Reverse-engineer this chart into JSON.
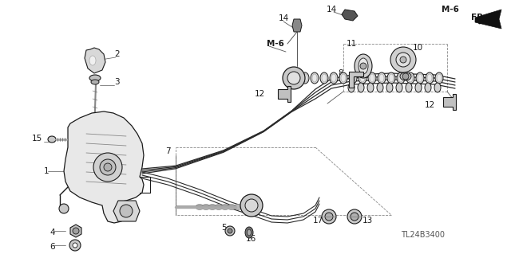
{
  "bg": "#ffffff",
  "lc": "#1a1a1a",
  "tc": "#1a1a1a",
  "figsize": [
    6.4,
    3.19
  ],
  "dpi": 100,
  "diagram_code": "TL24B3400"
}
